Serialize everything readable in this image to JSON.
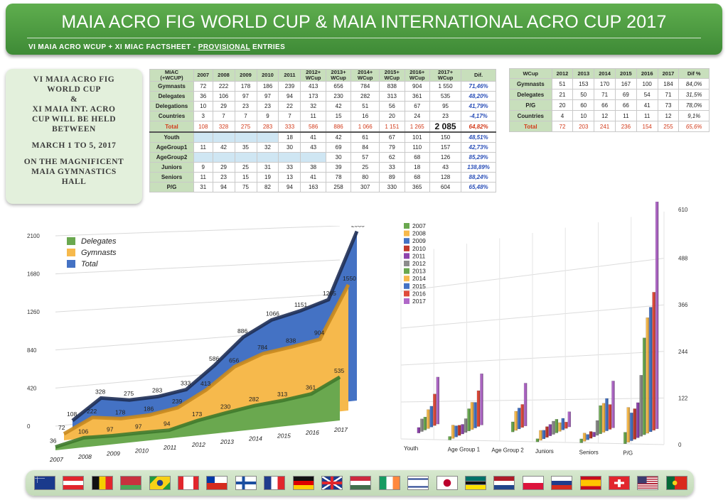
{
  "header": {
    "title": "MAIA ACRO FIG WORLD CUP & MAIA INTERNATIONAL ACRO CUP 2017",
    "subtitle_pre": "VI MAIA ACRO WCUP + XI MIAC FACTSHEET - ",
    "subtitle_underlined": "PROVISIONAL",
    "subtitle_post": " ENTRIES"
  },
  "info": {
    "line1": "VI MAIA ACRO FIG\nWORLD CUP\n&\nXI MAIA INT. ACRO\nCUP WILL BE HELD\nBETWEEN",
    "line2": "MARCH 1 TO 5, 2017",
    "line3": "ON THE MAGNIFICENT\nMAIA GYMNASTICS\nHALL"
  },
  "miac_table": {
    "headers": [
      "MIAC\n(+WCUP)",
      "2007",
      "2008",
      "2009",
      "2010",
      "2011",
      "2012+\nWCup",
      "2013+\nWCup",
      "2014+\nWCup",
      "2015+\nWCup",
      "2016+\nWCup",
      "2017+\nWCup",
      "Dif."
    ],
    "rows": [
      [
        "Gymnasts",
        "72",
        "222",
        "178",
        "186",
        "239",
        "413",
        "656",
        "784",
        "838",
        "904",
        "1 550",
        "71,46%"
      ],
      [
        "Delegates",
        "36",
        "106",
        "97",
        "97",
        "94",
        "173",
        "230",
        "282",
        "313",
        "361",
        "535",
        "48,20%"
      ],
      [
        "Delegations",
        "10",
        "29",
        "23",
        "23",
        "22",
        "32",
        "42",
        "51",
        "56",
        "67",
        "95",
        "41,79%"
      ],
      [
        "Countries",
        "3",
        "7",
        "7",
        "9",
        "7",
        "11",
        "15",
        "16",
        "20",
        "24",
        "23",
        "-4,17%"
      ],
      [
        "Total",
        "108",
        "328",
        "275",
        "283",
        "333",
        "586",
        "886",
        "1 066",
        "1 151",
        "1 265",
        "2 085",
        "64,82%"
      ],
      [
        "Youth",
        "",
        "",
        "",
        "",
        "18",
        "41",
        "42",
        "61",
        "67",
        "101",
        "150",
        "48,51%"
      ],
      [
        "AgeGroup1",
        "11",
        "42",
        "35",
        "32",
        "30",
        "43",
        "69",
        "84",
        "79",
        "110",
        "157",
        "42,73%"
      ],
      [
        "AgeGroup2",
        "",
        "",
        "",
        "",
        "",
        "",
        "30",
        "57",
        "62",
        "68",
        "126",
        "85,29%"
      ],
      [
        "Juniors",
        "9",
        "29",
        "25",
        "31",
        "33",
        "38",
        "39",
        "25",
        "33",
        "18",
        "43",
        "138,89%"
      ],
      [
        "Seniors",
        "11",
        "23",
        "15",
        "19",
        "13",
        "41",
        "78",
        "80",
        "89",
        "68",
        "128",
        "88,24%"
      ],
      [
        "P/G",
        "31",
        "94",
        "75",
        "82",
        "94",
        "163",
        "258",
        "307",
        "330",
        "365",
        "604",
        "65,48%"
      ]
    ]
  },
  "wcup_table": {
    "headers": [
      "WCup",
      "2012",
      "2013",
      "2014",
      "2015",
      "2016",
      "2017",
      "Dif %"
    ],
    "rows": [
      [
        "Gymnasts",
        "51",
        "153",
        "170",
        "167",
        "100",
        "184",
        "84,0%"
      ],
      [
        "Delegates",
        "21",
        "50",
        "71",
        "69",
        "54",
        "71",
        "31,5%"
      ],
      [
        "P/G",
        "20",
        "60",
        "66",
        "66",
        "41",
        "73",
        "78,0%"
      ],
      [
        "Countries",
        "4",
        "10",
        "12",
        "11",
        "11",
        "12",
        "9,1%"
      ],
      [
        "Total",
        "72",
        "203",
        "241",
        "236",
        "154",
        "255",
        "65,6%"
      ]
    ]
  },
  "chart_data": [
    {
      "type": "area",
      "categories": [
        "2007",
        "2008",
        "2009",
        "2010",
        "2011",
        "2012",
        "2013",
        "2014",
        "2015",
        "2016",
        "2017"
      ],
      "series": [
        {
          "name": "Delegates",
          "values": [
            36,
            106,
            97,
            97,
            94,
            173,
            230,
            282,
            313,
            361,
            535
          ],
          "color": "#6aa84f"
        },
        {
          "name": "Gymnasts",
          "values": [
            72,
            222,
            178,
            186,
            239,
            413,
            656,
            784,
            838,
            904,
            1550
          ],
          "color": "#f6b94c"
        },
        {
          "name": "Total",
          "values": [
            108,
            328,
            275,
            283,
            333,
            586,
            886,
            1066,
            1151,
            1265,
            2085
          ],
          "color": "#4472c4"
        }
      ],
      "data_labels": {
        "Delegates": [
          "36",
          "106",
          "97",
          "97",
          "94",
          "173",
          "230",
          "282",
          "313",
          "361",
          "535"
        ],
        "Gymnasts": [
          "72",
          "222",
          "178",
          "186",
          "239",
          "413",
          "656",
          "784",
          "838",
          "904",
          "1550"
        ],
        "Total": [
          "108",
          "328",
          "275",
          "283",
          "333",
          "586",
          "886",
          "1066",
          "1151",
          "1265",
          "2085"
        ]
      },
      "yticks": [
        "0",
        "420",
        "840",
        "1260",
        "1680",
        "2100"
      ],
      "ylim": [
        0,
        2100
      ],
      "grid": true,
      "legend": "top-left"
    },
    {
      "type": "bar",
      "categories": [
        "Youth",
        "Age Group 1",
        "Age Group 2",
        "Juniors",
        "Seniors",
        "P/G"
      ],
      "series": [
        {
          "name": "2007",
          "values": [
            0,
            11,
            0,
            9,
            11,
            31
          ],
          "color": "#6aa84f"
        },
        {
          "name": "2008",
          "values": [
            0,
            42,
            0,
            29,
            23,
            94
          ],
          "color": "#f6b94c"
        },
        {
          "name": "2009",
          "values": [
            0,
            35,
            0,
            25,
            15,
            75
          ],
          "color": "#4472c4"
        },
        {
          "name": "2010",
          "values": [
            0,
            32,
            0,
            31,
            19,
            82
          ],
          "color": "#c0392b"
        },
        {
          "name": "2011",
          "values": [
            18,
            30,
            0,
            33,
            13,
            94
          ],
          "color": "#8e44ad"
        },
        {
          "name": "2012",
          "values": [
            41,
            43,
            0,
            38,
            41,
            163
          ],
          "color": "#8c8c8c"
        },
        {
          "name": "2013",
          "values": [
            42,
            69,
            30,
            39,
            78,
            258
          ],
          "color": "#6aa84f"
        },
        {
          "name": "2014",
          "values": [
            61,
            84,
            57,
            25,
            80,
            307
          ],
          "color": "#f6b94c"
        },
        {
          "name": "2015",
          "values": [
            67,
            79,
            62,
            33,
            89,
            330
          ],
          "color": "#4472c4"
        },
        {
          "name": "2016",
          "values": [
            101,
            110,
            68,
            18,
            68,
            365
          ],
          "color": "#e04a3a"
        },
        {
          "name": "2017",
          "values": [
            150,
            157,
            126,
            43,
            128,
            604
          ],
          "color": "#b068c8"
        }
      ],
      "top_label": "610",
      "yticks": [
        "0",
        "122",
        "244",
        "366",
        "488"
      ],
      "ylim": [
        0,
        610
      ],
      "grid": true,
      "legend": "top-left"
    }
  ],
  "flags": [
    {
      "name": "australia-flag",
      "colors": [
        "#1a3a8c",
        "#1a3a8c",
        "#ffffff"
      ],
      "style": "aus"
    },
    {
      "name": "austria-flag",
      "colors": [
        "#e1262d",
        "#ffffff",
        "#e1262d"
      ],
      "style": "h3"
    },
    {
      "name": "belgium-flag",
      "colors": [
        "#111111",
        "#f5d000",
        "#e1262d"
      ],
      "style": "v3"
    },
    {
      "name": "belarus-flag",
      "colors": [
        "#c8313e",
        "#c8313e",
        "#4aa657"
      ],
      "style": "h3"
    },
    {
      "name": "brazil-flag",
      "colors": [
        "#1f9a3f",
        "#f7d117",
        "#1f3c8c"
      ],
      "style": "bra"
    },
    {
      "name": "canada-flag",
      "colors": [
        "#e1262d",
        "#ffffff",
        "#e1262d"
      ],
      "style": "can"
    },
    {
      "name": "chile-flag",
      "colors": [
        "#ffffff",
        "#d52b1e",
        "#0039a6"
      ],
      "style": "chl"
    },
    {
      "name": "finland-flag",
      "colors": [
        "#ffffff",
        "#1a4ea0",
        "#ffffff"
      ],
      "style": "cross"
    },
    {
      "name": "france-flag",
      "colors": [
        "#1f3c8c",
        "#ffffff",
        "#e1262d"
      ],
      "style": "v3"
    },
    {
      "name": "germany-flag",
      "colors": [
        "#111111",
        "#dd0000",
        "#ffce00"
      ],
      "style": "h3"
    },
    {
      "name": "uk-flag",
      "colors": [
        "#1f3c8c",
        "#ffffff",
        "#e1262d"
      ],
      "style": "uk"
    },
    {
      "name": "hungary-flag",
      "colors": [
        "#cd2a3e",
        "#ffffff",
        "#436f4d"
      ],
      "style": "h3"
    },
    {
      "name": "ireland-flag",
      "colors": [
        "#169b62",
        "#ffffff",
        "#ff883e"
      ],
      "style": "v3"
    },
    {
      "name": "israel-flag",
      "colors": [
        "#ffffff",
        "#1f3c8c",
        "#ffffff"
      ],
      "style": "isr"
    },
    {
      "name": "japan-flag",
      "colors": [
        "#ffffff",
        "#bc002d",
        "#ffffff"
      ],
      "style": "jpn"
    },
    {
      "name": "mozambique-flag",
      "colors": [
        "#007168",
        "#111111",
        "#fce100"
      ],
      "style": "moz"
    },
    {
      "name": "netherlands-flag",
      "colors": [
        "#ae1c28",
        "#ffffff",
        "#21468b"
      ],
      "style": "h3"
    },
    {
      "name": "poland-flag",
      "colors": [
        "#ffffff",
        "#ffffff",
        "#dc143c"
      ],
      "style": "h2"
    },
    {
      "name": "russia-flag",
      "colors": [
        "#ffffff",
        "#1f3c8c",
        "#d52b1e"
      ],
      "style": "h3"
    },
    {
      "name": "spain-flag",
      "colors": [
        "#c60b1e",
        "#ffc400",
        "#c60b1e"
      ],
      "style": "esp"
    },
    {
      "name": "switzerland-flag",
      "colors": [
        "#e1262d",
        "#ffffff",
        "#e1262d"
      ],
      "style": "che"
    },
    {
      "name": "usa-flag",
      "colors": [
        "#b22234",
        "#ffffff",
        "#3c3b6e"
      ],
      "style": "usa"
    },
    {
      "name": "portugal-flag",
      "colors": [
        "#046a38",
        "#da291c",
        "#f7d117"
      ],
      "style": "prt"
    }
  ]
}
